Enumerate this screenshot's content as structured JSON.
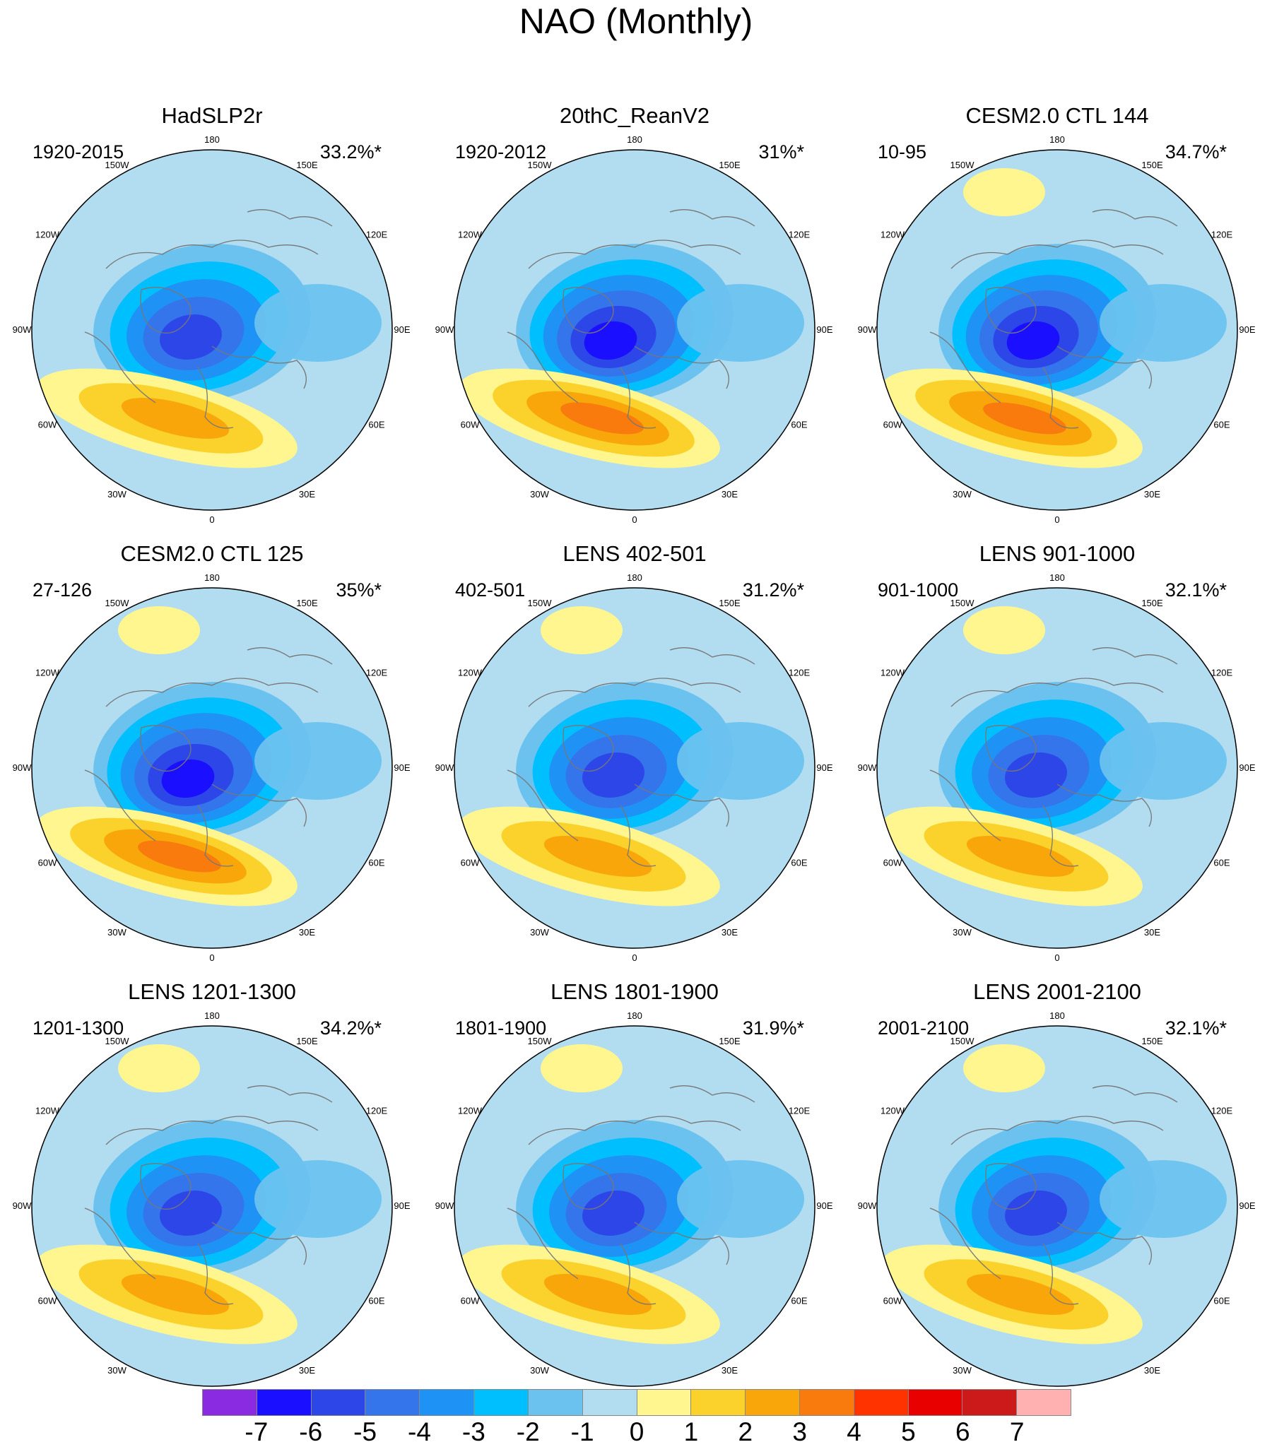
{
  "title": "NAO (Monthly)",
  "panels": [
    {
      "title": "HadSLP2r",
      "period": "1920-2015",
      "variance": "33.2%*",
      "north_pacific_positive": false,
      "max_positive_level": 3,
      "max_negative_level": -5
    },
    {
      "title": "20thC_ReanV2",
      "period": "1920-2012",
      "variance": "31%*",
      "north_pacific_positive": false,
      "max_positive_level": 4,
      "max_negative_level": -6
    },
    {
      "title": "CESM2.0 CTL 144",
      "period": "10-95",
      "variance": "34.7%*",
      "north_pacific_positive": true,
      "max_positive_level": 4,
      "max_negative_level": -6
    },
    {
      "title": "CESM2.0 CTL 125",
      "period": "27-126",
      "variance": "35%*",
      "north_pacific_positive": true,
      "max_positive_level": 4,
      "max_negative_level": -6
    },
    {
      "title": "LENS 402-501",
      "period": "402-501",
      "variance": "31.2%*",
      "north_pacific_positive": true,
      "max_positive_level": 3,
      "max_negative_level": -5
    },
    {
      "title": "LENS 901-1000",
      "period": "901-1000",
      "variance": "32.1%*",
      "north_pacific_positive": true,
      "max_positive_level": 3,
      "max_negative_level": -5
    },
    {
      "title": "LENS 1201-1300",
      "period": "1201-1300",
      "variance": "34.2%*",
      "north_pacific_positive": true,
      "max_positive_level": 3,
      "max_negative_level": -5
    },
    {
      "title": "LENS 1801-1900",
      "period": "1801-1900",
      "variance": "31.9%*",
      "north_pacific_positive": true,
      "max_positive_level": 3,
      "max_negative_level": -5
    },
    {
      "title": "LENS 2001-2100",
      "period": "2001-2100",
      "variance": "32.1%*",
      "north_pacific_positive": true,
      "max_positive_level": 3,
      "max_negative_level": -5
    }
  ],
  "longitude_labels": [
    "180",
    "150E",
    "120E",
    "90E",
    "60E",
    "30E",
    "0",
    "30W",
    "60W",
    "90W",
    "120W",
    "150W"
  ],
  "colorbar": {
    "ticks": [
      "-7",
      "-6",
      "-5",
      "-4",
      "-3",
      "-2",
      "-1",
      "0",
      "1",
      "2",
      "3",
      "4",
      "5",
      "6",
      "7"
    ],
    "colors": [
      "#8a2be2",
      "#1a0fff",
      "#2c46e8",
      "#3575ec",
      "#1f92f5",
      "#00bfff",
      "#6cc2ef",
      "#b2dcf0",
      "#fff68f",
      "#fbd12b",
      "#f9a60a",
      "#f97a0d",
      "#ff3300",
      "#e80000",
      "#cc1a1a",
      "#ffb0b0"
    ]
  },
  "colors": {
    "land_outline": "#777777",
    "map_border": "#000000"
  }
}
